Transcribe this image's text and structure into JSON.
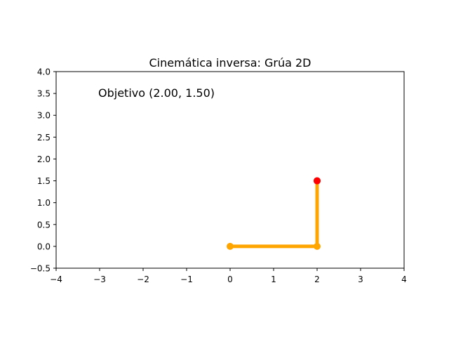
{
  "chart_data": {
    "type": "line",
    "title": "Cinemática inversa: Grúa 2D",
    "xlabel": "",
    "ylabel": "",
    "xlim": [
      -4,
      4
    ],
    "ylim": [
      -0.5,
      4.0
    ],
    "grid": false,
    "x_ticks": [
      -4,
      -3,
      -2,
      -1,
      0,
      1,
      2,
      3,
      4
    ],
    "x_tick_labels": [
      "−4",
      "−3",
      "−2",
      "−1",
      "0",
      "1",
      "2",
      "3",
      "4"
    ],
    "y_ticks": [
      -0.5,
      0.0,
      0.5,
      1.0,
      1.5,
      2.0,
      2.5,
      3.0,
      3.5,
      4.0
    ],
    "y_tick_labels": [
      "−0.5",
      "0.0",
      "0.5",
      "1.0",
      "1.5",
      "2.0",
      "2.5",
      "3.0",
      "3.5",
      "4.0"
    ],
    "annotation": {
      "text": "Objetivo (2.00, 1.50)",
      "x": -3.0,
      "y": 3.5
    },
    "series": [
      {
        "points": [
          [
            0,
            0
          ],
          [
            2,
            0
          ],
          [
            2,
            1.5
          ]
        ],
        "color": "#ffa500",
        "joint_color": "#ffa500",
        "end_color": "#ff0000"
      }
    ],
    "target": {
      "x": 2.0,
      "y": 1.5,
      "color": "#ff0000"
    }
  }
}
